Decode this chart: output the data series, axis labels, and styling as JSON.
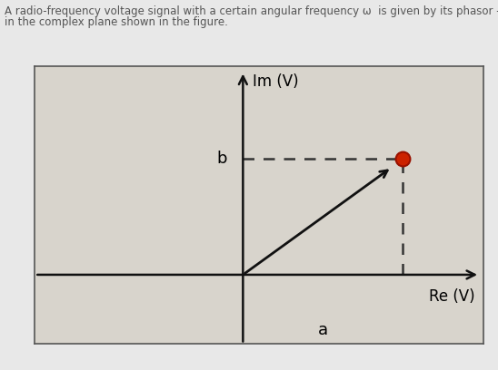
{
  "title_line1": "A radio-frequency voltage signal with a certain angular frequency ω  is given by its phasor – a red dot",
  "title_line2": "in the complex plane shown in the figure.",
  "title_fontsize": 8.5,
  "background_color": "#e8e8e8",
  "plot_bg_color": "#d8d4cc",
  "box_edgecolor": "#555555",
  "phasor_x": 1.0,
  "phasor_y": 1.0,
  "dot_color": "#cc2200",
  "dot_size": 130,
  "dot_edgecolor": "#991100",
  "arrow_color": "#111111",
  "dashed_color": "#333333",
  "label_b": "b",
  "label_a": "a",
  "label_im": "Im (V)",
  "label_re": "Re (V)",
  "xlim": [
    -1.3,
    1.5
  ],
  "ylim": [
    -0.6,
    1.8
  ],
  "label_fontsize": 12,
  "re_label_fontsize": 12,
  "title_color": "#555555"
}
